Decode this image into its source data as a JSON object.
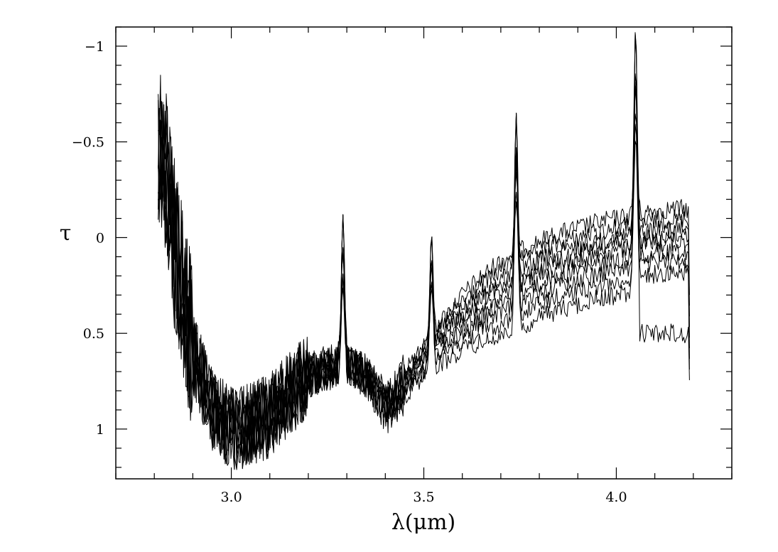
{
  "chart_data": {
    "type": "line",
    "title": "",
    "xlabel": "λ(μm)",
    "ylabel": "τ",
    "xlim": [
      2.7,
      4.3
    ],
    "ylim": [
      1.26,
      -1.1
    ],
    "y_inverted": true,
    "x_ticks": [
      3.0,
      3.5,
      4.0
    ],
    "x_tick_labels": [
      "3.0",
      "3.5",
      "4.0"
    ],
    "y_ticks": [
      -1,
      -0.5,
      0,
      0.5,
      1
    ],
    "y_tick_labels": [
      "−1",
      "−0.5",
      "0",
      "0.5",
      "1"
    ],
    "grid": false,
    "legend": "none",
    "line_color": "#000000",
    "series_count": 9,
    "baseline": {
      "x": [
        2.82,
        2.85,
        2.9,
        2.95,
        3.0,
        3.05,
        3.1,
        3.15,
        3.2,
        3.25,
        3.3,
        3.35,
        3.4,
        3.45,
        3.5,
        3.55,
        3.6,
        3.65,
        3.7,
        3.75,
        3.8,
        3.85,
        3.9,
        3.95,
        4.0,
        4.05,
        4.1,
        4.15,
        4.19
      ],
      "y": [
        -0.5,
        0.0,
        0.6,
        0.9,
        1.0,
        0.98,
        0.93,
        0.82,
        0.72,
        0.68,
        0.66,
        0.72,
        0.88,
        0.76,
        0.62,
        0.52,
        0.42,
        0.35,
        0.29,
        0.24,
        0.19,
        0.15,
        0.12,
        0.09,
        0.07,
        0.05,
        0.03,
        0.02,
        0.02
      ]
    },
    "series_offsets": [
      -0.17,
      -0.12,
      -0.07,
      -0.03,
      0.0,
      0.05,
      0.1,
      0.16,
      0.23
    ],
    "emission_peaks": [
      {
        "x": 3.29,
        "peak": -0.12
      },
      {
        "x": 3.52,
        "peak": -0.02
      },
      {
        "x": 3.74,
        "peak": -0.65
      },
      {
        "x": 4.05,
        "peak": -1.1
      }
    ],
    "notes_tail": {
      "x_start": 4.06,
      "y_level": 0.5
    }
  }
}
